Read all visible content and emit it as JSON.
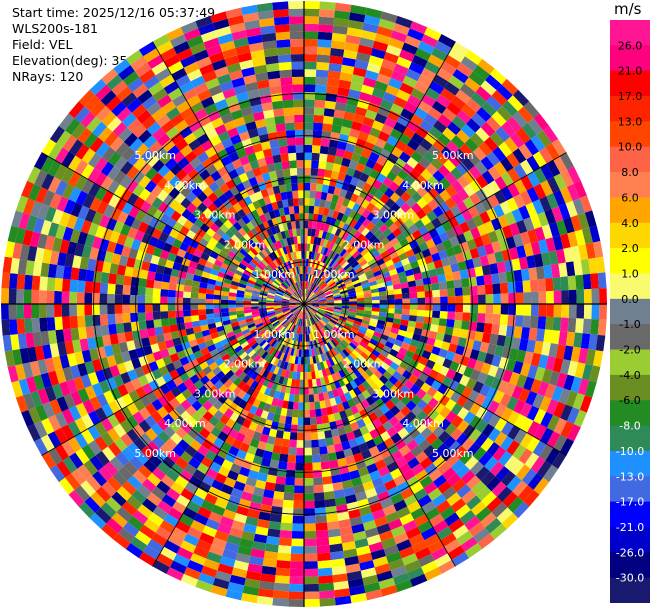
{
  "info": {
    "start_time": "Start time: 2025/12/16 05:37:49",
    "instrument": "WLS200s-181",
    "field": "Field: VEL",
    "elevation": "Elevation(deg): 35.00",
    "nrays": "NRays: 120"
  },
  "range_rings": {
    "labels": [
      "1.00km",
      "2.00km",
      "3.00km",
      "4.00km",
      "5.00km"
    ],
    "max_range_km": 7.2
  },
  "colorbar": {
    "unit": "m/s",
    "ticks": [
      "26.0",
      "21.0",
      "17.0",
      "13.0",
      "10.0",
      "8.0",
      "6.0",
      "4.0",
      "2.0",
      "1.0",
      "0.0",
      "-1.0",
      "-2.0",
      "-4.0",
      "-6.0",
      "-8.0",
      "-10.0",
      "-13.0",
      "-17.0",
      "-21.0",
      "-26.0",
      "-30.0"
    ],
    "colors": [
      "#ff1493",
      "#ff007f",
      "#ff0000",
      "#ff2400",
      "#ff4500",
      "#ff6347",
      "#ff7f50",
      "#ffa500",
      "#ffd700",
      "#ffff00",
      "#fafa6e",
      "#708090",
      "#696969",
      "#9acd32",
      "#6b8e23",
      "#228b22",
      "#2e8b57",
      "#1e90ff",
      "#4169e1",
      "#0000ff",
      "#0000cd",
      "#000080",
      "#191970"
    ]
  }
}
